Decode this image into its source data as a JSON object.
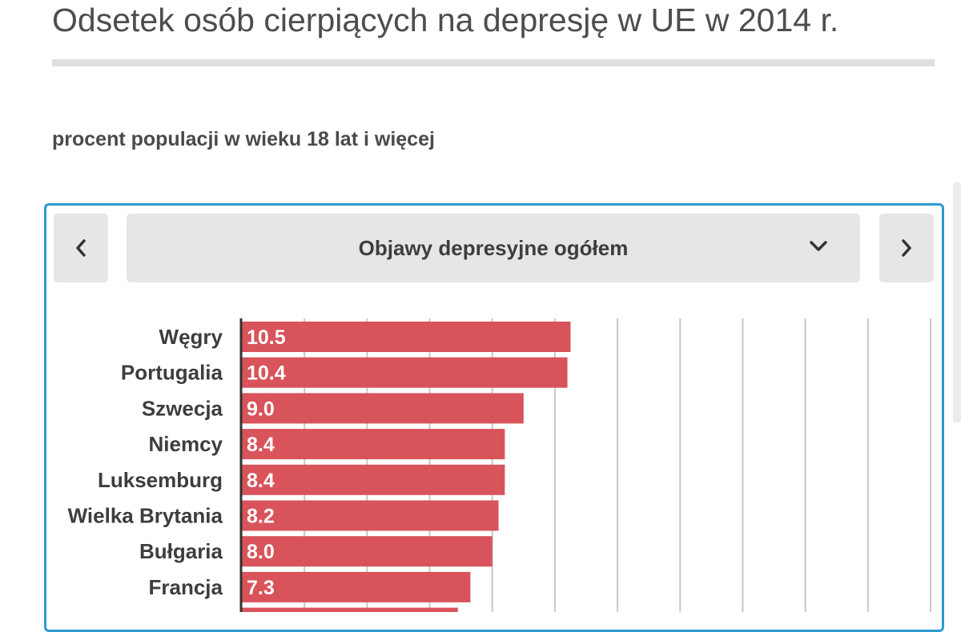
{
  "page": {
    "title": "Odsetek osób cierpiących na depresję w UE w 2014 r.",
    "subtitle": "procent populacji w wieku 18 lat i więcej"
  },
  "selector": {
    "selected_label": "Objawy depresyjne ogółem",
    "prev_icon": "chevron-left-icon",
    "next_icon": "chevron-right-icon",
    "dropdown_icon": "chevron-down-icon"
  },
  "colors": {
    "bar": "#d9535a",
    "accent_border": "#2d9ad0",
    "grid": "#c8c8c8",
    "button_bg": "#e6e6e6"
  },
  "chart_data": {
    "type": "bar",
    "orientation": "horizontal",
    "categories": [
      "Węgry",
      "Portugalia",
      "Szwecja",
      "Niemcy",
      "Luksemburg",
      "Wielka Brytania",
      "Bułgaria",
      "Francja"
    ],
    "values": [
      10.5,
      10.4,
      9.0,
      8.4,
      8.4,
      8.2,
      8.0,
      7.3
    ],
    "value_labels": [
      "10.5",
      "10.4",
      "9.0",
      "8.4",
      "8.4",
      "8.2",
      "8.0",
      "7.3"
    ],
    "partially_visible_next_value": 6.9,
    "xlim": [
      0,
      22
    ],
    "grid": true,
    "title": "",
    "xlabel": "",
    "ylabel": ""
  }
}
